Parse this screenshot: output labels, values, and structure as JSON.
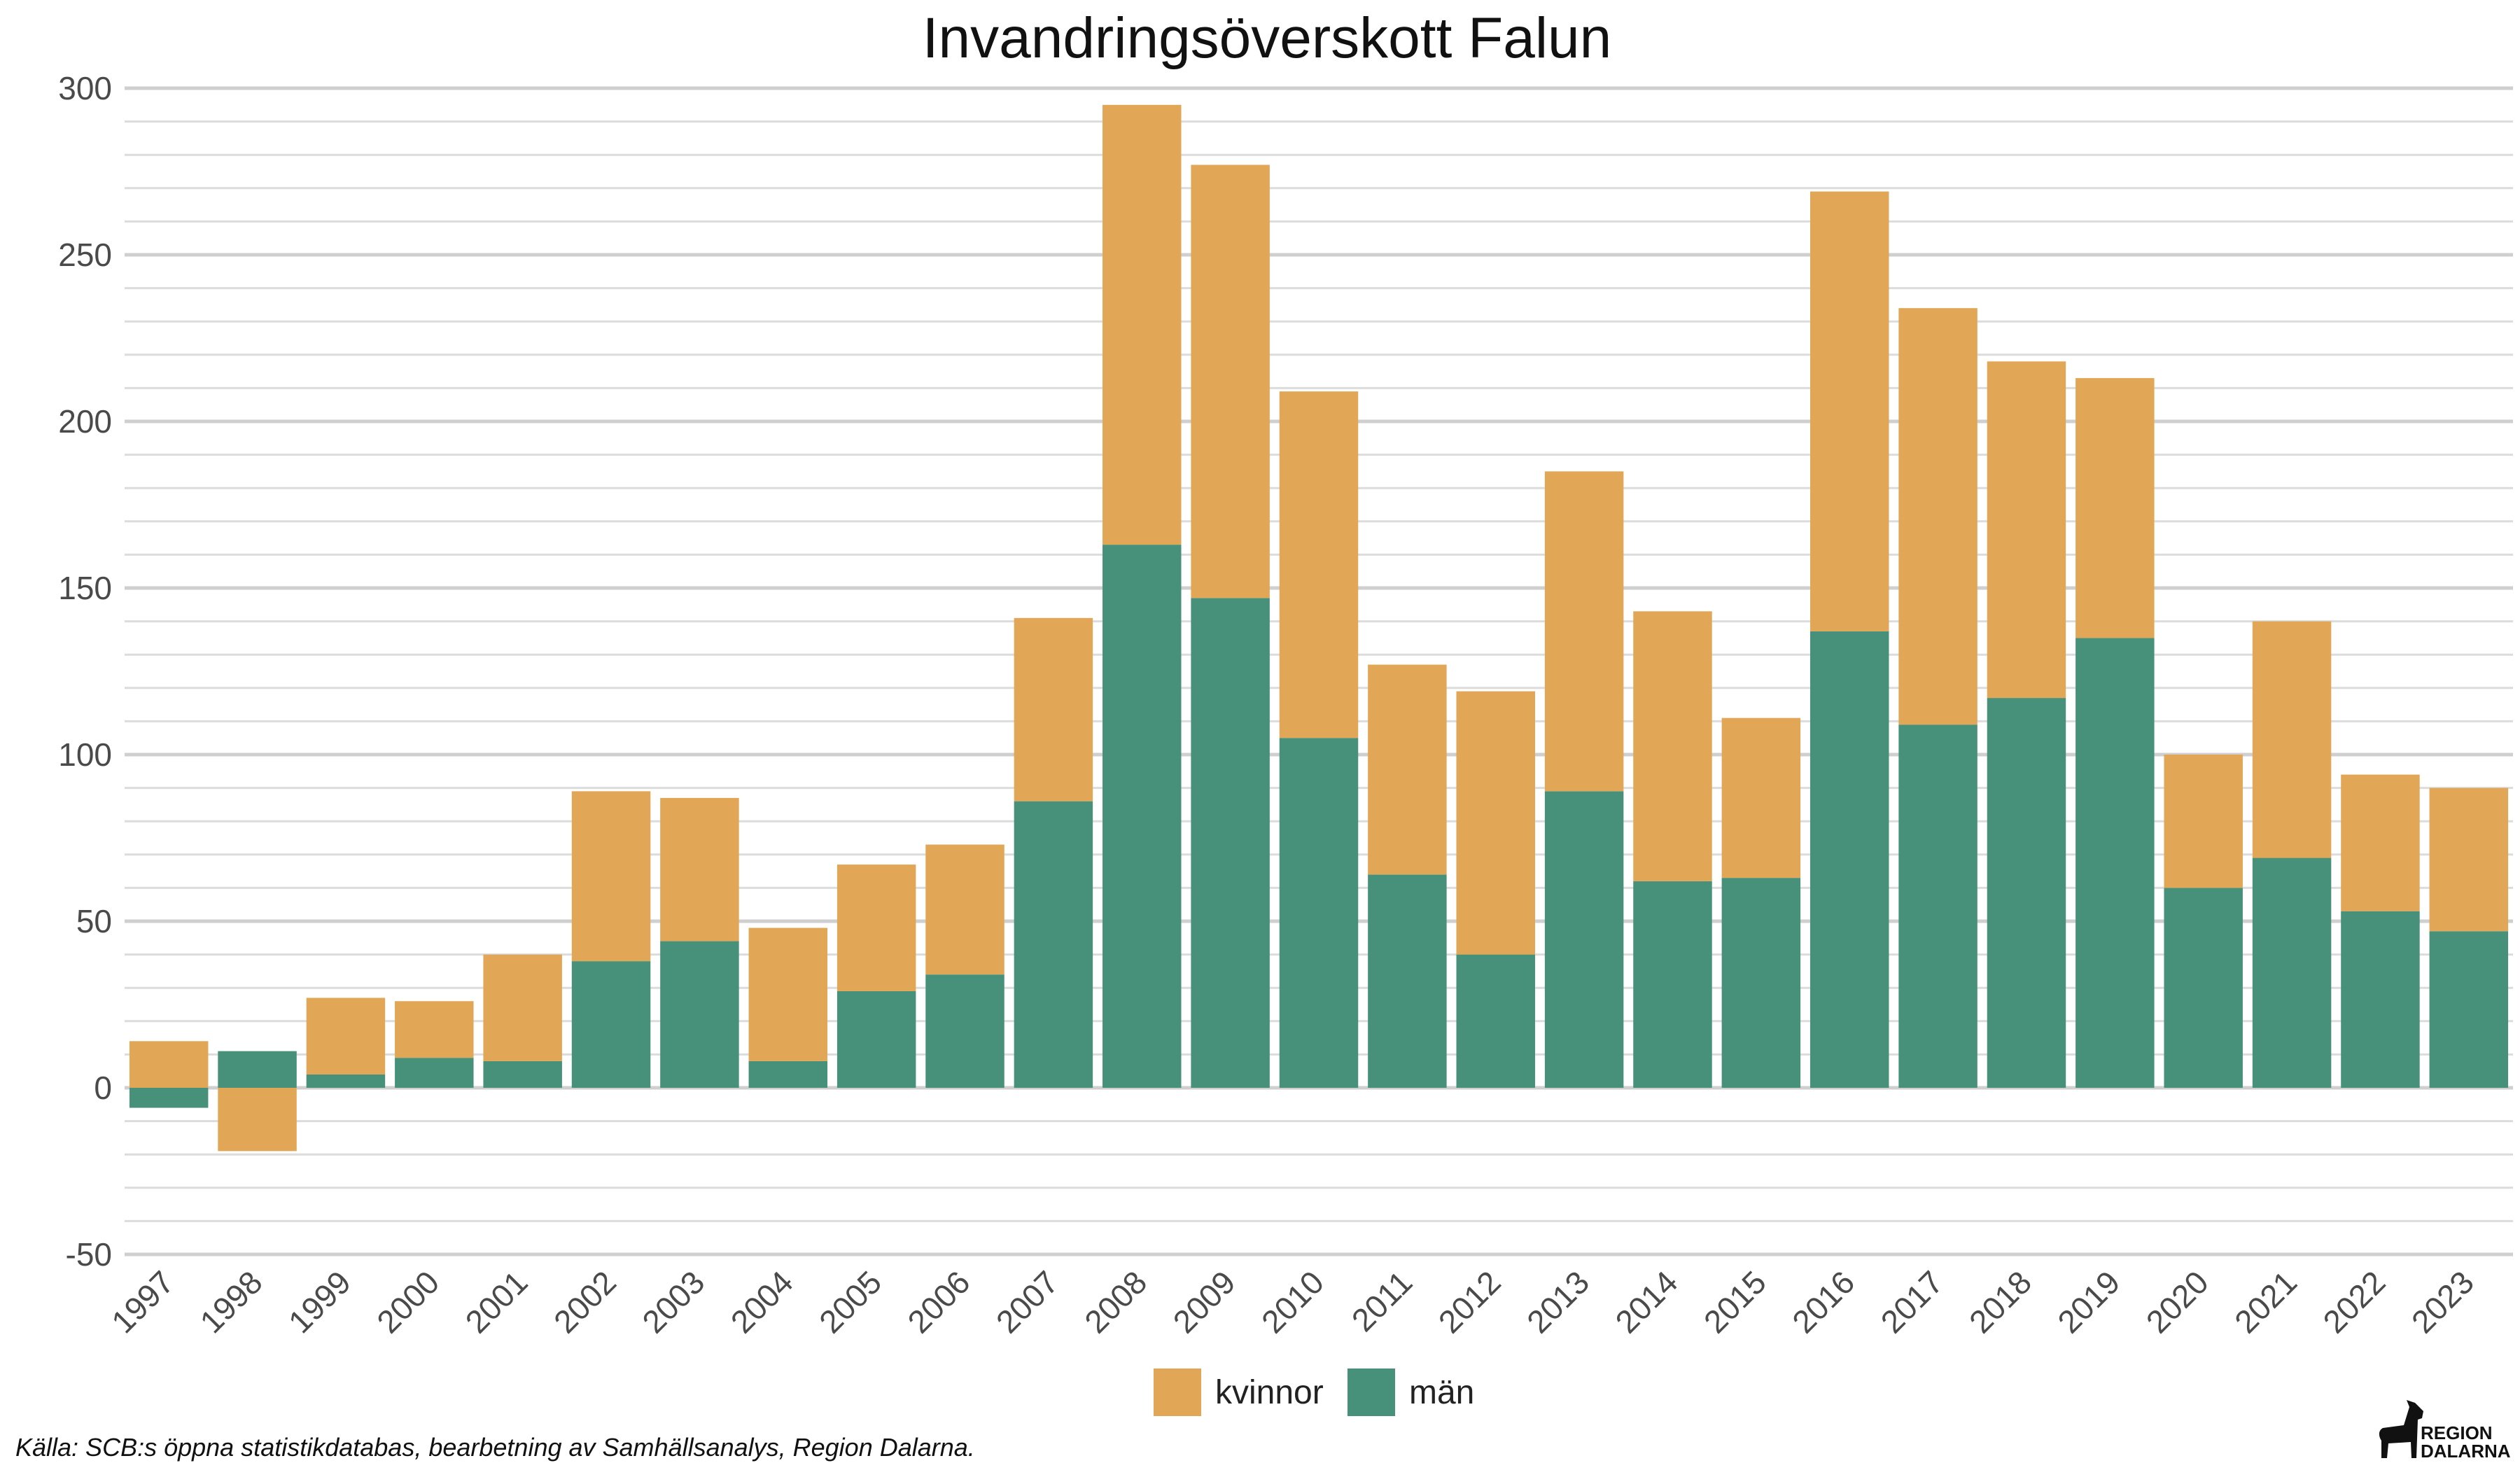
{
  "chart_data": {
    "type": "bar",
    "stacked": true,
    "title": "Invandringsöverskott Falun",
    "xlabel": "",
    "ylabel": "",
    "ylim": [
      -50,
      300
    ],
    "yticks": [
      "-50",
      "0",
      "50",
      "100",
      "150",
      "200",
      "250",
      "300"
    ],
    "grid": true,
    "legend_position": "bottom",
    "categories": [
      "1997",
      "1998",
      "1999",
      "2000",
      "2001",
      "2002",
      "2003",
      "2004",
      "2005",
      "2006",
      "2007",
      "2008",
      "2009",
      "2010",
      "2011",
      "2012",
      "2013",
      "2014",
      "2015",
      "2016",
      "2017",
      "2018",
      "2019",
      "2020",
      "2021",
      "2022",
      "2023"
    ],
    "series": [
      {
        "name": "män",
        "color": "#47917a",
        "values": [
          -6,
          11,
          4,
          9,
          8,
          38,
          44,
          8,
          29,
          34,
          86,
          163,
          147,
          105,
          64,
          40,
          89,
          62,
          63,
          137,
          109,
          117,
          135,
          60,
          69,
          53,
          47
        ]
      },
      {
        "name": "kvinnor",
        "color": "#e2a756",
        "values": [
          14,
          -19,
          23,
          17,
          32,
          51,
          43,
          40,
          38,
          39,
          55,
          132,
          130,
          104,
          63,
          79,
          96,
          81,
          48,
          132,
          125,
          101,
          78,
          40,
          71,
          41,
          43
        ]
      }
    ],
    "legend": [
      "kvinnor",
      "män"
    ]
  },
  "footer": {
    "source": "Källa: SCB:s öppna statistikdatabas, bearbetning av Samhällsanalys, Region Dalarna.",
    "logo_line1": "REGION",
    "logo_line2": "DALARNA"
  }
}
